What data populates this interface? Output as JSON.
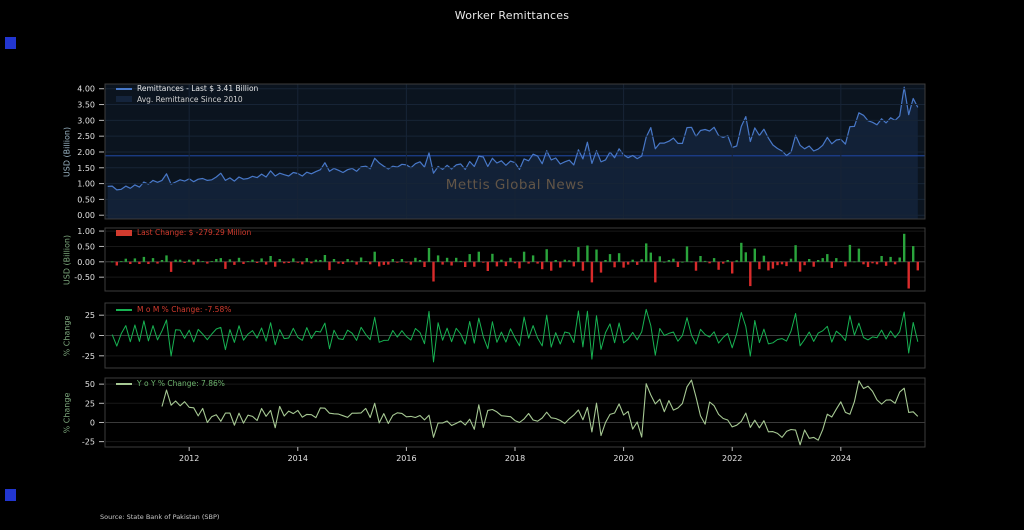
{
  "title": "Worker Remittances",
  "watermark": "Mettis Global News",
  "source": "Source: State Bank of Pakistan (SBP)",
  "colors": {
    "background": "#000000",
    "title_text": "#e8e8e8",
    "tick_text": "#e2e2e2",
    "remittance_line": "#4878c8",
    "avg_line": "#1d3f8f",
    "area_fill": "rgba(45,80,140,0.22)",
    "panel1_bg": "#0b141f",
    "grid_panel1": "#172436",
    "grid_dark": "#181818",
    "zero_line": "#3a3a3a",
    "spine": "#3c3c3c",
    "bar_up": "#2aa43c",
    "bar_down": "#d92b2b",
    "mom_line": "#17b252",
    "yoy_line": "#a6c893",
    "legend_white": "#e6e6e6",
    "legend_gray": "#cfcfcf",
    "legend_red": "#d23b2e",
    "legend_green": "#6db36d",
    "avg_swatch": "#14243c",
    "ylabel_blue": "#9ab4c4",
    "ylabel_green": "#7da87d",
    "watermark_color": "#6b5b49",
    "blue_mark": "#2236d0",
    "source_text": "#c8c8c8"
  },
  "panels": {
    "remittances": {
      "legend_line": "Remittances - Last $ 3.41 Billion",
      "legend_avg": "Avg. Remittance Since 2010",
      "ylabel": "USD (Billion)",
      "ytick_values": [
        4.0,
        3.5,
        3.0,
        2.5,
        2.0,
        1.5,
        1.0,
        0.5,
        0.0
      ],
      "ytick_labels": [
        "4.00",
        "3.50",
        "3.00",
        "2.50",
        "2.00",
        "1.50",
        "1.00",
        "0.50",
        "0.00"
      ]
    },
    "change": {
      "legend": "Last Change: $ -279.29 Million",
      "ylabel": "USD (Billion)",
      "ytick_values": [
        1.0,
        0.5,
        0.0,
        -0.5
      ],
      "ytick_labels": [
        "1.00",
        "0.50",
        "0.00",
        "-0.50"
      ]
    },
    "mom": {
      "legend": "M o M % Change: -7.58%",
      "ylabel": "% Change",
      "ytick_values": [
        25,
        0,
        -25
      ],
      "ytick_labels": [
        "25",
        "0",
        "-25"
      ]
    },
    "yoy": {
      "legend": "Y o Y % Change: 7.86%",
      "ylabel": "% Change",
      "ytick_values": [
        50,
        25,
        0,
        -25
      ],
      "ytick_labels": [
        "50",
        "25",
        "0",
        "-25"
      ]
    }
  },
  "chart_data": {
    "type": "multi-panel: line (remittances), bar (monthly change), line (MoM %), line (YoY %)",
    "frequency": "monthly",
    "x_start": "2010-07",
    "x_end": "2025-06",
    "x_ticks": [
      "2012",
      "2014",
      "2016",
      "2018",
      "2020",
      "2022",
      "2024"
    ],
    "last_remittance_usd_bn": 3.41,
    "last_change_usd_mn": -279.29,
    "last_mom_pct": -7.58,
    "last_yoy_pct": 7.86,
    "average_since_2010": 1.88,
    "derived_note": "change = v[i]-v[i-1]; MoM% = (v[i]/v[i-1]-1)*100; YoY% = (v[i]/v[i-12]-1)*100",
    "monthly_remittances_usd_bn": [
      0.91,
      0.92,
      0.8,
      0.82,
      0.92,
      0.85,
      0.96,
      0.89,
      1.05,
      0.98,
      1.1,
      1.04,
      1.1,
      1.31,
      0.98,
      1.05,
      1.12,
      1.08,
      1.15,
      1.06,
      1.14,
      1.16,
      1.1,
      1.12,
      1.21,
      1.33,
      1.1,
      1.18,
      1.08,
      1.21,
      1.14,
      1.16,
      1.23,
      1.19,
      1.3,
      1.21,
      1.4,
      1.24,
      1.33,
      1.28,
      1.24,
      1.35,
      1.32,
      1.24,
      1.36,
      1.31,
      1.38,
      1.44,
      1.66,
      1.39,
      1.48,
      1.42,
      1.35,
      1.44,
      1.48,
      1.39,
      1.53,
      1.55,
      1.47,
      1.8,
      1.65,
      1.55,
      1.46,
      1.55,
      1.52,
      1.61,
      1.59,
      1.5,
      1.63,
      1.69,
      1.52,
      1.97,
      1.33,
      1.54,
      1.45,
      1.58,
      1.46,
      1.59,
      1.62,
      1.45,
      1.7,
      1.54,
      1.87,
      1.84,
      1.54,
      1.8,
      1.65,
      1.72,
      1.58,
      1.71,
      1.66,
      1.45,
      1.78,
      1.72,
      1.93,
      1.87,
      1.63,
      2.04,
      1.75,
      1.81,
      1.62,
      1.69,
      1.74,
      1.59,
      2.07,
      1.78,
      2.31,
      1.64,
      2.04,
      1.69,
      1.75,
      2.0,
      1.82,
      2.1,
      1.91,
      1.82,
      1.89,
      1.79,
      1.87,
      2.47,
      2.77,
      2.1,
      2.28,
      2.28,
      2.34,
      2.44,
      2.27,
      2.27,
      2.77,
      2.78,
      2.49,
      2.68,
      2.71,
      2.66,
      2.78,
      2.52,
      2.46,
      2.52,
      2.14,
      2.19,
      2.81,
      3.12,
      2.33,
      2.76,
      2.52,
      2.72,
      2.44,
      2.22,
      2.11,
      2.03,
      1.89,
      1.99,
      2.53,
      2.21,
      2.1,
      2.19,
      2.03,
      2.09,
      2.21,
      2.46,
      2.26,
      2.38,
      2.4,
      2.25,
      2.8,
      2.81,
      3.24,
      3.16,
      2.99,
      2.94,
      2.86,
      3.05,
      2.92,
      3.08,
      3.0,
      3.14,
      4.05,
      3.18,
      3.69,
      3.41
    ]
  }
}
